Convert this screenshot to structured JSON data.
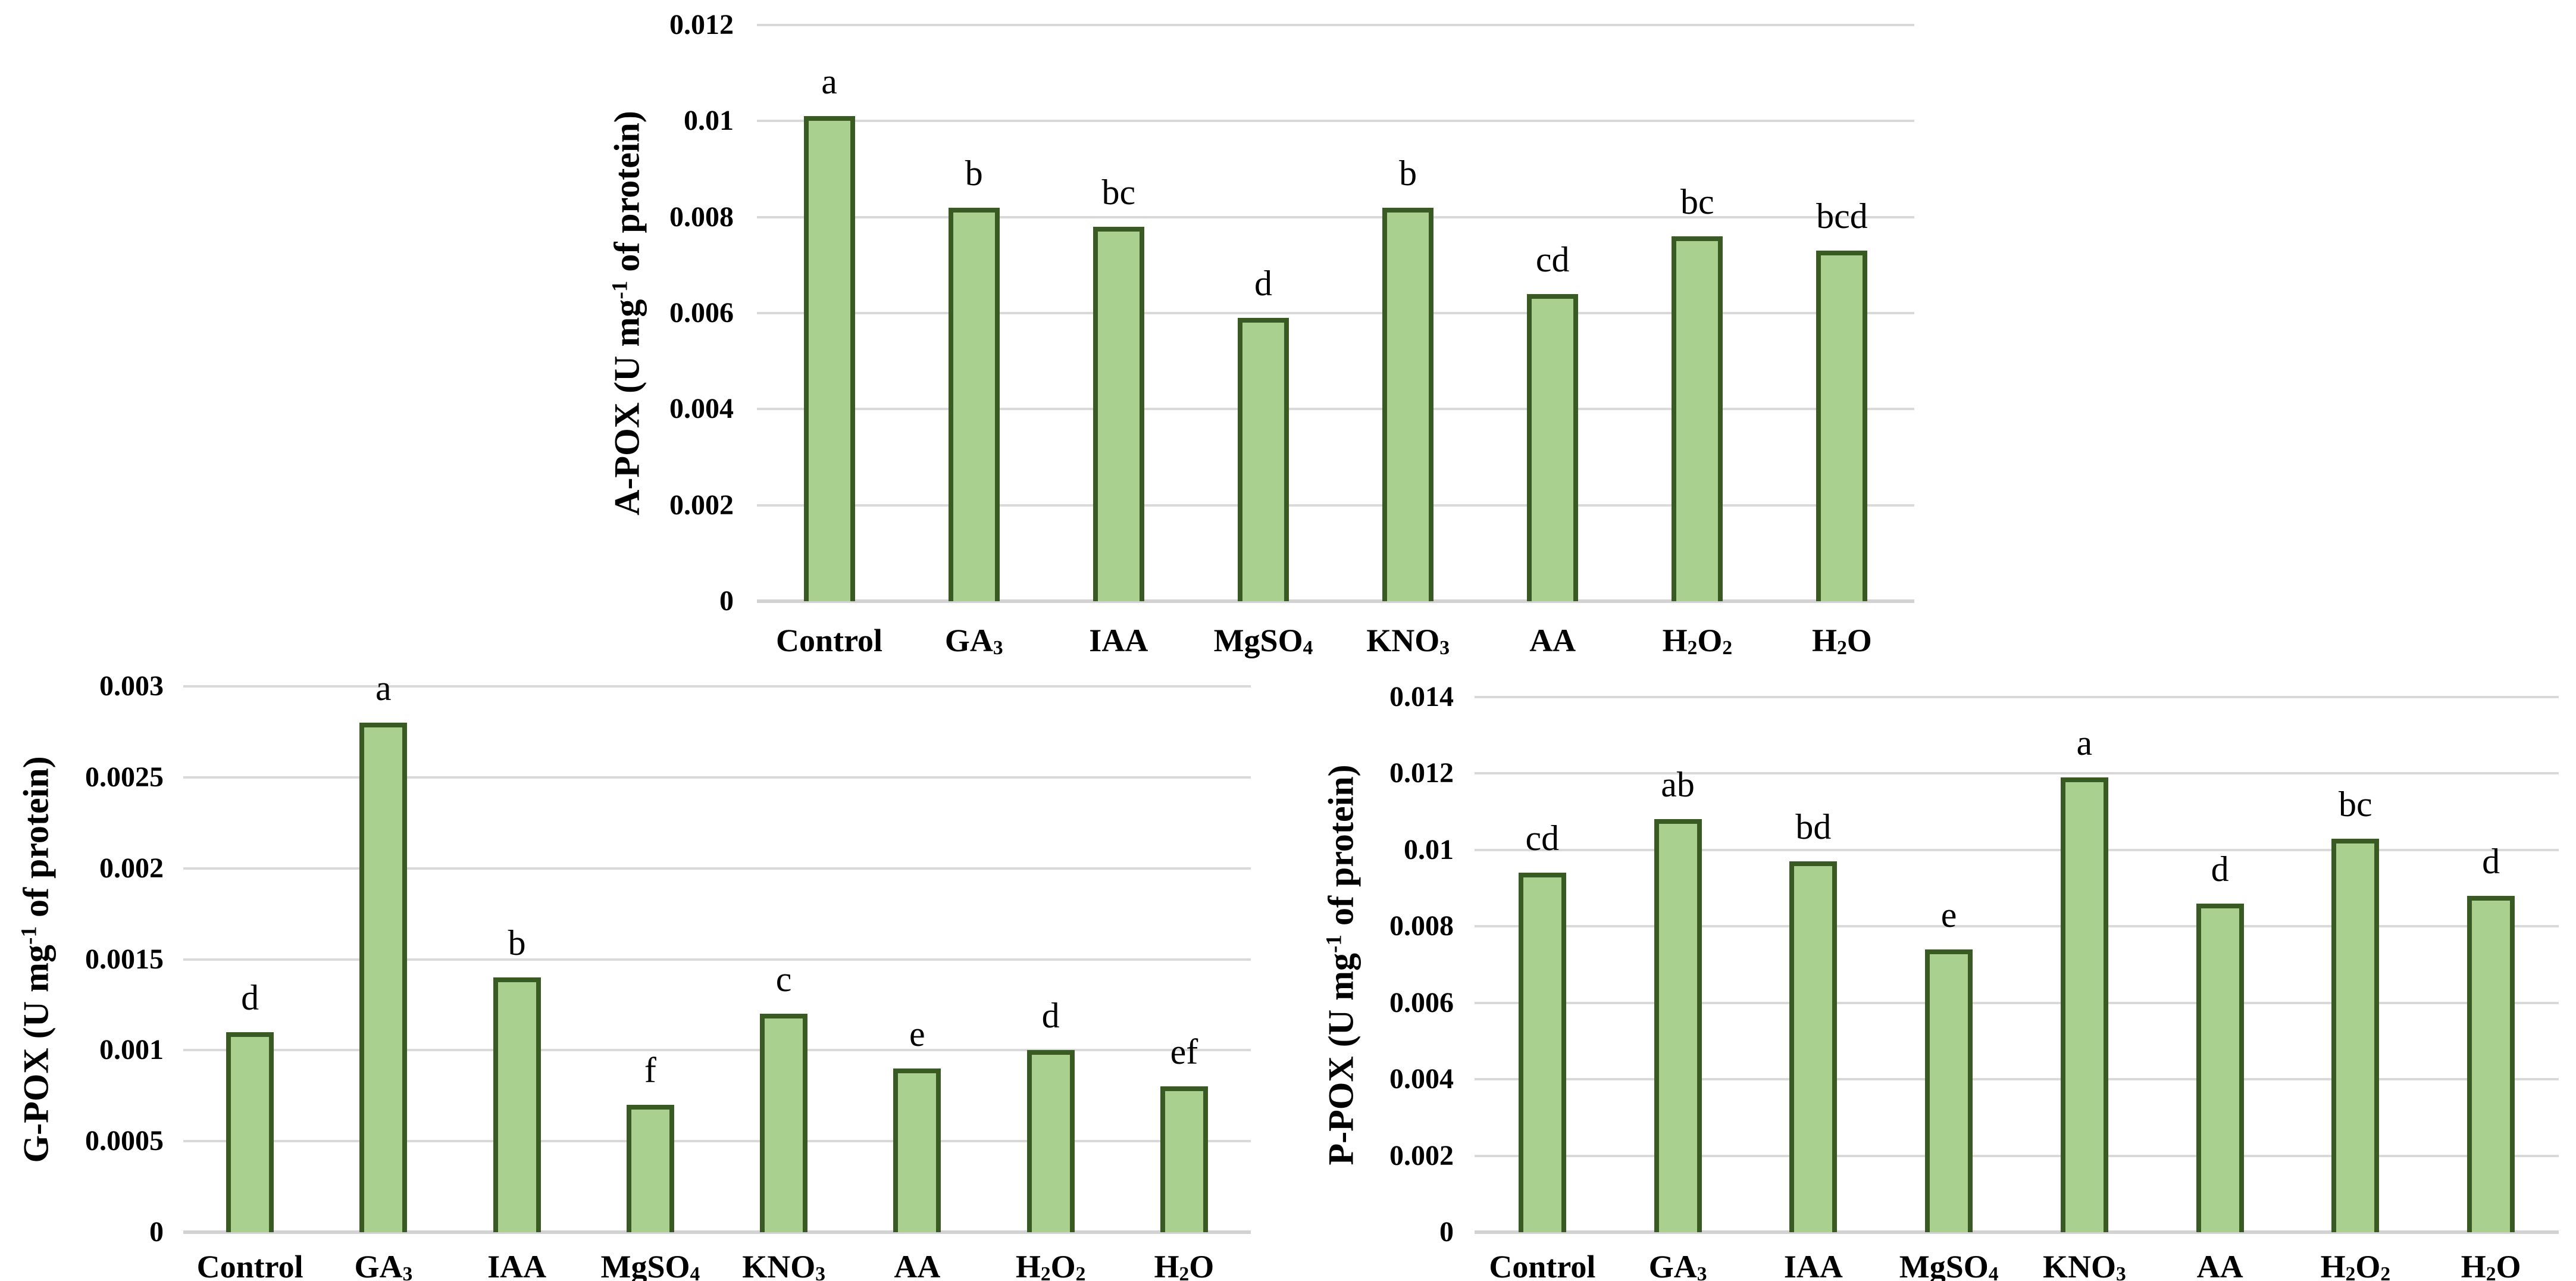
{
  "figure": {
    "background": "#ffffff",
    "text_color": "#000000",
    "bar_fill_color": "#a9d08e",
    "bar_border_color": "#3a5a23",
    "gridline_color": "#d9d9d9",
    "axis_line_color": "#d2d2d2"
  },
  "chart_data": [
    {
      "type": "bar",
      "id": "a-pox",
      "title": "",
      "xlabel": "",
      "ylabel": "A-POX (U mg⁻¹ of protein)",
      "ylim": [
        0,
        0.012
      ],
      "ytick_step": 0.002,
      "ytick_labels": [
        "0",
        "0.002",
        "0.004",
        "0.006",
        "0.008",
        "0.01",
        "0.012"
      ],
      "grid": "horizontal",
      "legend": "none",
      "categories": [
        "Control",
        "GA₃",
        "IAA",
        "MgSO₄",
        "KNO₃",
        "AA",
        "H₂O₂",
        "H₂O"
      ],
      "values": [
        0.0101,
        0.0082,
        0.0078,
        0.0059,
        0.0082,
        0.0064,
        0.0076,
        0.0073
      ],
      "sig_letters": [
        "a",
        "b",
        "bc",
        "d",
        "b",
        "cd",
        "bc",
        "bcd"
      ]
    },
    {
      "type": "bar",
      "id": "g-pox",
      "title": "",
      "xlabel": "",
      "ylabel": "G-POX (U mg⁻¹ of protein)",
      "ylim": [
        0,
        0.003
      ],
      "ytick_step": 0.0005,
      "ytick_labels": [
        "0",
        "0.0005",
        "0.001",
        "0.0015",
        "0.002",
        "0.0025",
        "0.003"
      ],
      "grid": "horizontal",
      "legend": "none",
      "categories": [
        "Control",
        "GA₃",
        "IAA",
        "MgSO₄",
        "KNO₃",
        "AA",
        "H₂O₂",
        "H₂O"
      ],
      "values": [
        0.0011,
        0.0028,
        0.0014,
        0.0007,
        0.0012,
        0.0009,
        0.001,
        0.0008
      ],
      "sig_letters": [
        "d",
        "a",
        "b",
        "f",
        "c",
        "e",
        "d",
        "ef"
      ]
    },
    {
      "type": "bar",
      "id": "p-pox",
      "title": "",
      "xlabel": "",
      "ylabel": "P-POX (U mg⁻¹ of protein)",
      "ylim": [
        0,
        0.014
      ],
      "ytick_step": 0.002,
      "ytick_labels": [
        "0",
        "0.002",
        "0.004",
        "0.006",
        "0.008",
        "0.01",
        "0.012",
        "0.014"
      ],
      "grid": "horizontal",
      "legend": "none",
      "categories": [
        "Control",
        "GA₃",
        "IAA",
        "MgSO₄",
        "KNO₃",
        "AA",
        "H₂O₂",
        "H₂O"
      ],
      "values": [
        0.0094,
        0.0108,
        0.0097,
        0.0074,
        0.0119,
        0.0086,
        0.0103,
        0.0088
      ],
      "sig_letters": [
        "cd",
        "ab",
        "bd",
        "e",
        "a",
        "d",
        "bc",
        "d"
      ]
    }
  ]
}
